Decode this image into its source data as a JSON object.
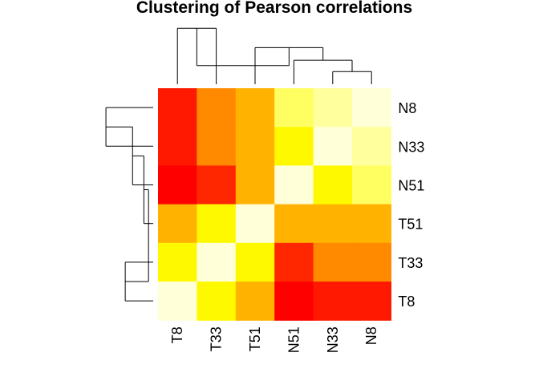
{
  "chart_data": {
    "type": "heatmap",
    "title": "Clustering of Pearson correlations",
    "columns": [
      "T8",
      "T33",
      "T51",
      "N51",
      "N33",
      "N8"
    ],
    "rows": [
      "N8",
      "N33",
      "N51",
      "T51",
      "T33",
      "T8"
    ],
    "values": [
      [
        0.1,
        0.35,
        0.5,
        0.9,
        0.95,
        1.0
      ],
      [
        0.1,
        0.35,
        0.5,
        0.7,
        1.0,
        0.95
      ],
      [
        0.0,
        0.15,
        0.5,
        1.0,
        0.7,
        0.9
      ],
      [
        0.5,
        0.7,
        1.0,
        0.5,
        0.5,
        0.5
      ],
      [
        0.7,
        1.0,
        0.7,
        0.15,
        0.35,
        0.35
      ],
      [
        1.0,
        0.7,
        0.5,
        0.0,
        0.1,
        0.1
      ]
    ],
    "colormap": [
      "#ff0000",
      "#ff2300",
      "#ff7800",
      "#ffa000",
      "#ffc300",
      "#ffff00",
      "#ffff30",
      "#ffffd8"
    ],
    "column_dendrogram": {
      "tree": [
        [
          "T8",
          "T33"
        ],
        [
          "T51",
          [
            "N51",
            [
              "N33",
              "N8"
            ]
          ]
        ]
      ],
      "merge_heights": [
        0.28,
        0.84,
        0.55,
        0.36,
        0.19
      ]
    },
    "row_dendrogram": {
      "tree": [
        [
          [
            [
              "N8",
              "N33"
            ],
            "N51"
          ],
          "T51"
        ],
        [
          "T33",
          "T8"
        ]
      ],
      "merge_heights": [
        0.07,
        0.14,
        0.31,
        0.71,
        0.42
      ]
    },
    "grid": false,
    "legend": "none"
  }
}
